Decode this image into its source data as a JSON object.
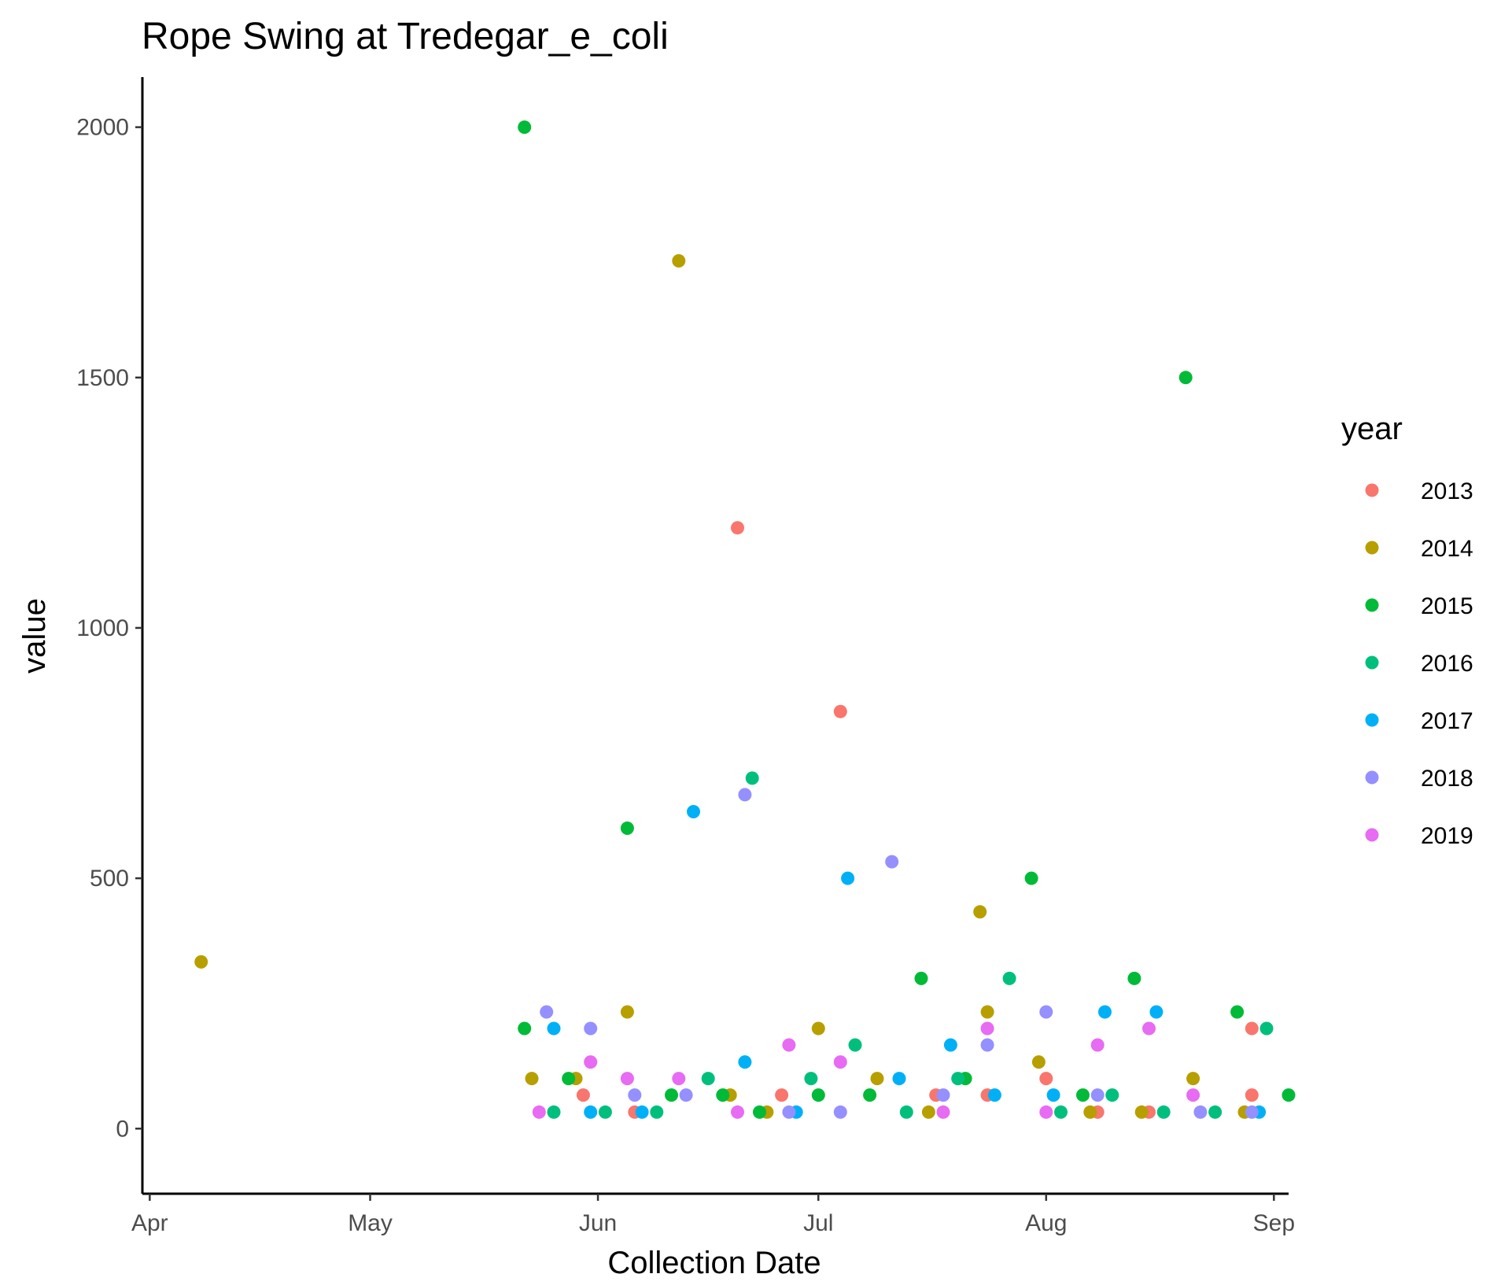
{
  "chart_data": {
    "type": "scatter",
    "title": "Rope Swing at Tredegar_e_coli",
    "xlabel": "Collection Date",
    "ylabel": "value",
    "x_type": "date (month-day, years overlaid)",
    "xlim": [
      "03-31",
      "09-03"
    ],
    "ylim": [
      -130,
      2100
    ],
    "x_ticks": [
      {
        "date": "04-01",
        "label": "Apr"
      },
      {
        "date": "05-01",
        "label": "May"
      },
      {
        "date": "06-01",
        "label": "Jun"
      },
      {
        "date": "07-01",
        "label": "Jul"
      },
      {
        "date": "08-01",
        "label": "Aug"
      },
      {
        "date": "09-01",
        "label": "Sep"
      }
    ],
    "y_ticks": [
      0,
      500,
      1000,
      1500,
      2000
    ],
    "grid": false,
    "legend": {
      "title": "year",
      "position": "right"
    },
    "series": [
      {
        "name": "2013",
        "color": "#F8766D",
        "points": [
          [
            "05-30",
            67
          ],
          [
            "06-06",
            33
          ],
          [
            "06-20",
            1200
          ],
          [
            "06-26",
            67
          ],
          [
            "07-04",
            833
          ],
          [
            "07-17",
            67
          ],
          [
            "07-24",
            67
          ],
          [
            "08-01",
            100
          ],
          [
            "08-08",
            33
          ],
          [
            "08-15",
            33
          ],
          [
            "08-29",
            200
          ],
          [
            "08-29",
            67
          ]
        ]
      },
      {
        "name": "2014",
        "color": "#B79F00",
        "points": [
          [
            "04-08",
            333
          ],
          [
            "05-23",
            100
          ],
          [
            "05-29",
            100
          ],
          [
            "06-05",
            233
          ],
          [
            "06-12",
            1733
          ],
          [
            "06-19",
            67
          ],
          [
            "06-24",
            33
          ],
          [
            "07-01",
            200
          ],
          [
            "07-09",
            100
          ],
          [
            "07-16",
            33
          ],
          [
            "07-23",
            433
          ],
          [
            "07-24",
            233
          ],
          [
            "07-31",
            133
          ],
          [
            "08-07",
            33
          ],
          [
            "08-14",
            33
          ],
          [
            "08-21",
            100
          ],
          [
            "08-28",
            33
          ]
        ]
      },
      {
        "name": "2015",
        "color": "#00BA38",
        "points": [
          [
            "05-22",
            2000
          ],
          [
            "05-22",
            200
          ],
          [
            "05-28",
            100
          ],
          [
            "06-05",
            600
          ],
          [
            "06-11",
            67
          ],
          [
            "06-18",
            67
          ],
          [
            "06-23",
            33
          ],
          [
            "07-01",
            67
          ],
          [
            "07-08",
            67
          ],
          [
            "07-15",
            300
          ],
          [
            "07-21",
            100
          ],
          [
            "07-30",
            500
          ],
          [
            "08-06",
            67
          ],
          [
            "08-13",
            300
          ],
          [
            "08-20",
            1500
          ],
          [
            "08-27",
            233
          ],
          [
            "09-03",
            67
          ]
        ]
      },
      {
        "name": "2016",
        "color": "#00BF7D",
        "points": [
          [
            "05-26",
            33
          ],
          [
            "06-02",
            33
          ],
          [
            "06-09",
            33
          ],
          [
            "06-16",
            100
          ],
          [
            "06-22",
            700
          ],
          [
            "06-30",
            100
          ],
          [
            "07-06",
            167
          ],
          [
            "07-13",
            33
          ],
          [
            "07-20",
            100
          ],
          [
            "07-27",
            300
          ],
          [
            "08-03",
            33
          ],
          [
            "08-10",
            67
          ],
          [
            "08-17",
            33
          ],
          [
            "08-24",
            33
          ],
          [
            "08-31",
            200
          ]
        ]
      },
      {
        "name": "2017",
        "color": "#00B0F6",
        "points": [
          [
            "05-26",
            200
          ],
          [
            "05-31",
            33
          ],
          [
            "06-07",
            33
          ],
          [
            "06-14",
            633
          ],
          [
            "06-21",
            133
          ],
          [
            "06-28",
            33
          ],
          [
            "07-05",
            500
          ],
          [
            "07-12",
            100
          ],
          [
            "07-19",
            167
          ],
          [
            "07-25",
            67
          ],
          [
            "08-02",
            67
          ],
          [
            "08-09",
            233
          ],
          [
            "08-16",
            233
          ],
          [
            "08-30",
            33
          ]
        ]
      },
      {
        "name": "2018",
        "color": "#9590FF",
        "points": [
          [
            "05-25",
            233
          ],
          [
            "05-31",
            200
          ],
          [
            "06-06",
            67
          ],
          [
            "06-13",
            67
          ],
          [
            "06-21",
            667
          ],
          [
            "06-27",
            33
          ],
          [
            "07-04",
            33
          ],
          [
            "07-11",
            533
          ],
          [
            "07-18",
            67
          ],
          [
            "07-24",
            167
          ],
          [
            "08-01",
            233
          ],
          [
            "08-08",
            67
          ],
          [
            "08-22",
            33
          ],
          [
            "08-29",
            33
          ]
        ]
      },
      {
        "name": "2019",
        "color": "#E76BF3",
        "points": [
          [
            "05-24",
            33
          ],
          [
            "05-31",
            133
          ],
          [
            "06-05",
            100
          ],
          [
            "06-12",
            100
          ],
          [
            "06-20",
            33
          ],
          [
            "06-27",
            167
          ],
          [
            "07-04",
            133
          ],
          [
            "07-18",
            33
          ],
          [
            "07-24",
            200
          ],
          [
            "08-01",
            33
          ],
          [
            "08-08",
            167
          ],
          [
            "08-15",
            200
          ],
          [
            "08-21",
            67
          ]
        ]
      }
    ]
  }
}
